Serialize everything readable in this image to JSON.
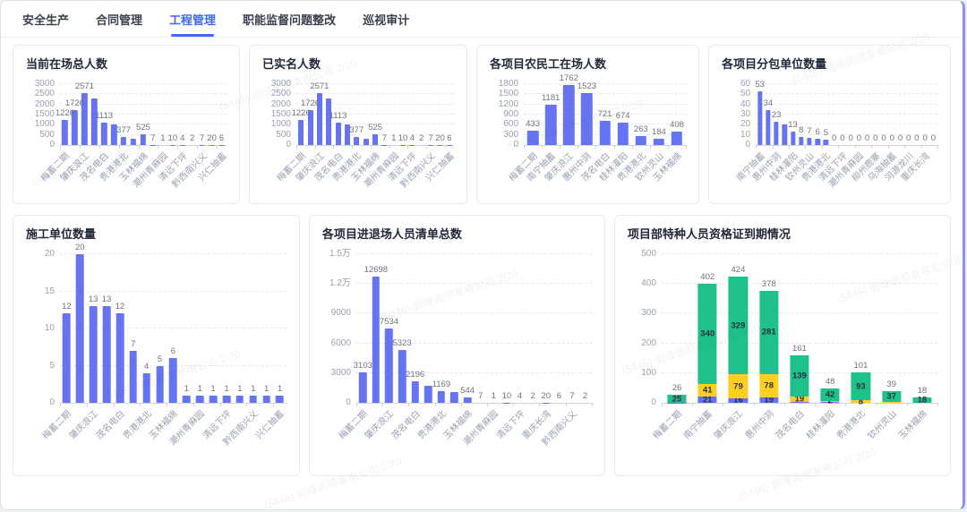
{
  "tabs": {
    "items": [
      {
        "label": "安全生产",
        "active": false
      },
      {
        "label": "合同管理",
        "active": false
      },
      {
        "label": "工程管理",
        "active": true
      },
      {
        "label": "职能监督问题整改",
        "active": false
      },
      {
        "label": "巡视审计",
        "active": false
      }
    ]
  },
  "watermark": {
    "text": "(5446) 调峰调频发电公司 2/20"
  },
  "colors": {
    "bar_blue": "#6674f1",
    "stack_blue": "#6674f1",
    "stack_yellow": "#fdcf20",
    "stack_green": "#1ec189",
    "tab_active": "#3f68f4"
  },
  "chart_data": [
    {
      "type": "bar",
      "title": "当前在场总人数",
      "ymax": 3000,
      "yticks": [
        "0",
        "500",
        "1000",
        "1500",
        "2000",
        "2500",
        "3000"
      ],
      "values": [
        1226,
        1726,
        2571,
        2280,
        1113,
        1000,
        377,
        290,
        525,
        7,
        1,
        10,
        4,
        2,
        7,
        20,
        6
      ],
      "value_labels": [
        "1226",
        "1726",
        "2571",
        "",
        "1113",
        "",
        "377",
        "",
        "525",
        "7",
        "1",
        "10",
        "4",
        "2",
        "7",
        "20",
        "6"
      ],
      "xlabels": [
        "梅蓄二期",
        "",
        "肇庆浪江",
        "",
        "茂名电白",
        "",
        "贵港港北",
        "",
        "玉林福绵",
        "",
        "潮州青麻园",
        "",
        "清远下坪",
        "",
        "黔西南兴义",
        "",
        "兴仁抽蓄"
      ]
    },
    {
      "type": "bar",
      "title": "已实名人数",
      "ymax": 3000,
      "yticks": [
        "0",
        "500",
        "1000",
        "1500",
        "2000",
        "2500",
        "3000"
      ],
      "values": [
        1226,
        1726,
        2571,
        2280,
        1113,
        1000,
        377,
        290,
        525,
        7,
        1,
        10,
        4,
        2,
        7,
        20,
        6
      ],
      "value_labels": [
        "1226",
        "1726",
        "2571",
        "",
        "1113",
        "",
        "377",
        "",
        "525",
        "7",
        "1",
        "10",
        "4",
        "2",
        "7",
        "20",
        "6"
      ],
      "xlabels": [
        "梅蓄二期",
        "",
        "肇庆浪江",
        "",
        "茂名电白",
        "",
        "贵港港北",
        "",
        "玉林福绵",
        "",
        "潮州青麻园",
        "",
        "清远下坪",
        "",
        "黔西南兴义",
        "",
        "兴仁抽蓄"
      ]
    },
    {
      "type": "bar",
      "title": "各项目农民工在场人数",
      "ymax": 1800,
      "yticks": [
        "0",
        "300",
        "600",
        "900",
        "1200",
        "1500",
        "1800"
      ],
      "values": [
        433,
        1181,
        1762,
        1523,
        721,
        674,
        263,
        184,
        408
      ],
      "value_labels": [
        "433",
        "1181",
        "1762",
        "1523",
        "721",
        "674",
        "263",
        "184",
        "408"
      ],
      "xlabels": [
        "梅蓄二期",
        "南宁抽蓄",
        "肇庆浪江",
        "惠州中洞",
        "茂名电白",
        "桂林灌阳",
        "贵港港北",
        "钦州灵山",
        "玉林福绵"
      ]
    },
    {
      "type": "bar",
      "title": "各项目分包单位数量",
      "ymax": 60,
      "yticks": [
        "0",
        "10",
        "20",
        "30",
        "40",
        "50",
        "60"
      ],
      "values": [
        53,
        34,
        23,
        20,
        13,
        8,
        7,
        6,
        5,
        0,
        0,
        0,
        0,
        0,
        0,
        0,
        0,
        0,
        0,
        0,
        0,
        0
      ],
      "value_labels": [
        "53",
        "34",
        "23",
        "",
        "13",
        "8",
        "7",
        "6",
        "5",
        "0",
        "0",
        "0",
        "0",
        "0",
        "0",
        "0",
        "0",
        "0",
        "0",
        "0",
        "0",
        "0"
      ],
      "xlabels": [
        "南宁抽蓄",
        "",
        "惠州中洞",
        "",
        "桂林灌阳",
        "",
        "钦州灵山",
        "",
        "贵港港北",
        "",
        "清远下坪",
        "",
        "潮州青麻园",
        "",
        "柳州鹿寨",
        "",
        "乌海抽蓄",
        "",
        "河源龙川",
        "",
        "重庆长湾",
        ""
      ]
    },
    {
      "type": "bar",
      "title": "施工单位数量",
      "ymax": 20,
      "yticks": [
        "0",
        "5",
        "10",
        "15",
        "20"
      ],
      "values": [
        12,
        20,
        13,
        13,
        12,
        7,
        4,
        5,
        6,
        1,
        1,
        1,
        1,
        1,
        1,
        1,
        1
      ],
      "value_labels": [
        "12",
        "20",
        "13",
        "13",
        "12",
        "7",
        "4",
        "5",
        "6",
        "1",
        "1",
        "1",
        "1",
        "1",
        "1",
        "1",
        "1"
      ],
      "xlabels": [
        "梅蓄二期",
        "",
        "肇庆浪江",
        "",
        "茂名电白",
        "",
        "贵港港北",
        "",
        "玉林福绵",
        "",
        "潮州青麻园",
        "",
        "清远下坪",
        "",
        "黔西南兴义",
        "",
        "兴仁抽蓄"
      ]
    },
    {
      "type": "bar",
      "title": "各项目进退场人员清单总数",
      "ymax": 15000,
      "yticks": [
        "0",
        "3000",
        "6000",
        "9000",
        "1.2万",
        "1.5万"
      ],
      "values": [
        3103,
        12698,
        7534,
        5323,
        2196,
        1700,
        1169,
        1050,
        544,
        7,
        1,
        10,
        4,
        2,
        20,
        6,
        7,
        2
      ],
      "value_labels": [
        "3103",
        "12698",
        "7534",
        "5323",
        "2196",
        "",
        "1169",
        "",
        "544",
        "7",
        "1",
        "10",
        "4",
        "2",
        "20",
        "6",
        "7",
        "2"
      ],
      "xlabels": [
        "梅蓄二期",
        "",
        "肇庆浪江",
        "",
        "茂名电白",
        "",
        "贵港港北",
        "",
        "玉林福绵",
        "",
        "潮州青麻园",
        "",
        "清远下坪",
        "",
        "重庆长湾",
        "",
        "黔西南兴义",
        ""
      ]
    },
    {
      "type": "stacked-bar",
      "title": "项目部特种人员资格证到期情况",
      "ymax": 500,
      "yticks": [
        "0",
        "100",
        "200",
        "300",
        "400",
        "500"
      ],
      "categories": [
        "梅蓄二期",
        "南宁抽蓄",
        "肇庆浪江",
        "惠州中洞",
        "茂名电白",
        "桂林灌阳",
        "贵港港北",
        "钦州灵山",
        "玉林福绵"
      ],
      "bars": [
        {
          "total_label": "26",
          "segments": [
            {
              "color": "stack_blue",
              "v": 1,
              "label": ""
            },
            {
              "color": "stack_yellow",
              "v": 0,
              "label": ""
            },
            {
              "color": "stack_green",
              "v": 25,
              "label": "25"
            }
          ]
        },
        {
          "total_label": "402",
          "segments": [
            {
              "color": "stack_blue",
              "v": 21,
              "label": "21"
            },
            {
              "color": "stack_yellow",
              "v": 41,
              "label": "41"
            },
            {
              "color": "stack_green",
              "v": 340,
              "label": "340"
            }
          ]
        },
        {
          "total_label": "424",
          "segments": [
            {
              "color": "stack_blue",
              "v": 16,
              "label": "16"
            },
            {
              "color": "stack_yellow",
              "v": 79,
              "label": "79"
            },
            {
              "color": "stack_green",
              "v": 329,
              "label": "329"
            }
          ]
        },
        {
          "total_label": "378",
          "segments": [
            {
              "color": "stack_blue",
              "v": 19,
              "label": "19"
            },
            {
              "color": "stack_yellow",
              "v": 78,
              "label": "78"
            },
            {
              "color": "stack_green",
              "v": 281,
              "label": "281"
            }
          ]
        },
        {
          "total_label": "161",
          "segments": [
            {
              "color": "stack_blue",
              "v": 3,
              "label": ""
            },
            {
              "color": "stack_yellow",
              "v": 19,
              "label": "19"
            },
            {
              "color": "stack_green",
              "v": 139,
              "label": "139"
            }
          ]
        },
        {
          "total_label": "48",
          "segments": [
            {
              "color": "stack_blue",
              "v": 4,
              "label": ""
            },
            {
              "color": "stack_yellow",
              "v": 2,
              "label": "2"
            },
            {
              "color": "stack_green",
              "v": 42,
              "label": "42"
            }
          ]
        },
        {
          "total_label": "101",
          "segments": [
            {
              "color": "stack_blue",
              "v": 0,
              "label": ""
            },
            {
              "color": "stack_yellow",
              "v": 8,
              "label": "8"
            },
            {
              "color": "stack_green",
              "v": 93,
              "label": "93"
            }
          ]
        },
        {
          "total_label": "39",
          "segments": [
            {
              "color": "stack_blue",
              "v": 0,
              "label": ""
            },
            {
              "color": "stack_yellow",
              "v": 2,
              "label": ""
            },
            {
              "color": "stack_green",
              "v": 37,
              "label": "37"
            }
          ]
        },
        {
          "total_label": "18",
          "segments": [
            {
              "color": "stack_blue",
              "v": 0,
              "label": ""
            },
            {
              "color": "stack_yellow",
              "v": 0,
              "label": ""
            },
            {
              "color": "stack_green",
              "v": 18,
              "label": "18"
            }
          ]
        }
      ]
    }
  ]
}
